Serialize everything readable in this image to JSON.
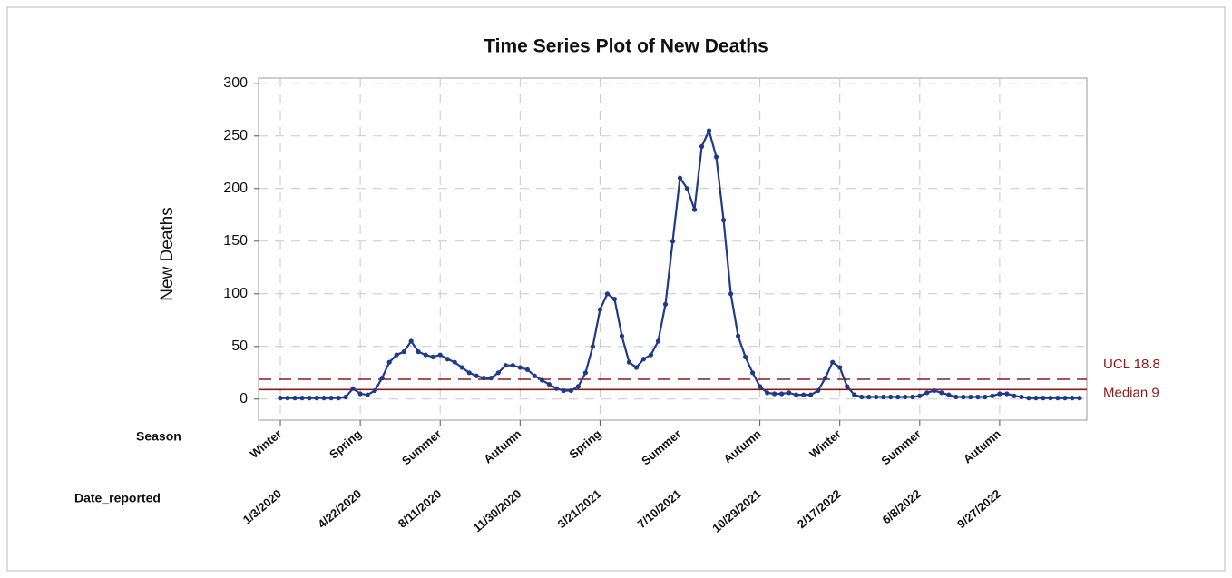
{
  "chart_data": {
    "type": "line",
    "title": "Time Series Plot of New Deaths",
    "ylabel": "New Deaths",
    "row_labels": [
      "Season",
      "Date_reported"
    ],
    "seasons": [
      "Winter",
      "Spring",
      "Summer",
      "Autumn",
      "Spring",
      "Summer",
      "Autumn",
      "Winter",
      "Summer",
      "Autumn"
    ],
    "xticks": [
      {
        "value": 0,
        "label": "1/3/2020"
      },
      {
        "value": 11,
        "label": "4/22/2020"
      },
      {
        "value": 22,
        "label": "8/11/2020"
      },
      {
        "value": 33,
        "label": "11/30/2020"
      },
      {
        "value": 44,
        "label": "3/21/2021"
      },
      {
        "value": 55,
        "label": "7/10/2021"
      },
      {
        "value": 66,
        "label": "10/29/2021"
      },
      {
        "value": 77,
        "label": "2/17/2022"
      },
      {
        "value": 88,
        "label": "6/8/2022"
      },
      {
        "value": 99,
        "label": "9/27/2022"
      }
    ],
    "xlim": [
      -3,
      111
    ],
    "ylim": [
      -20,
      305
    ],
    "yticks": [
      0,
      50,
      100,
      150,
      200,
      250,
      300
    ],
    "grid": true,
    "series": [
      {
        "name": "New Deaths",
        "color": "#1f3a8a",
        "values": [
          1,
          1,
          1,
          1,
          1,
          1,
          1,
          1,
          1,
          2,
          10,
          5,
          4,
          8,
          20,
          35,
          42,
          45,
          55,
          45,
          42,
          40,
          42,
          38,
          35,
          30,
          25,
          22,
          20,
          20,
          25,
          32,
          32,
          30,
          28,
          22,
          18,
          14,
          10,
          8,
          8,
          12,
          25,
          50,
          85,
          100,
          95,
          60,
          35,
          30,
          38,
          42,
          55,
          90,
          150,
          210,
          200,
          180,
          240,
          255,
          230,
          170,
          100,
          60,
          40,
          25,
          12,
          6,
          5,
          5,
          6,
          4,
          4,
          4,
          8,
          20,
          35,
          30,
          12,
          4,
          2,
          2,
          2,
          2,
          2,
          2,
          2,
          2,
          3,
          6,
          8,
          6,
          4,
          2,
          2,
          2,
          2,
          2,
          3,
          5,
          5,
          3,
          2,
          1,
          1,
          1,
          1,
          1,
          1,
          1,
          1
        ]
      }
    ],
    "reference_lines": [
      {
        "label": "UCL 18.8",
        "value": 18.8,
        "style": "dashed",
        "color": "#8b1a1a"
      },
      {
        "label": "Median 9",
        "value": 9,
        "style": "solid",
        "color": "#8b1a1a"
      }
    ]
  }
}
